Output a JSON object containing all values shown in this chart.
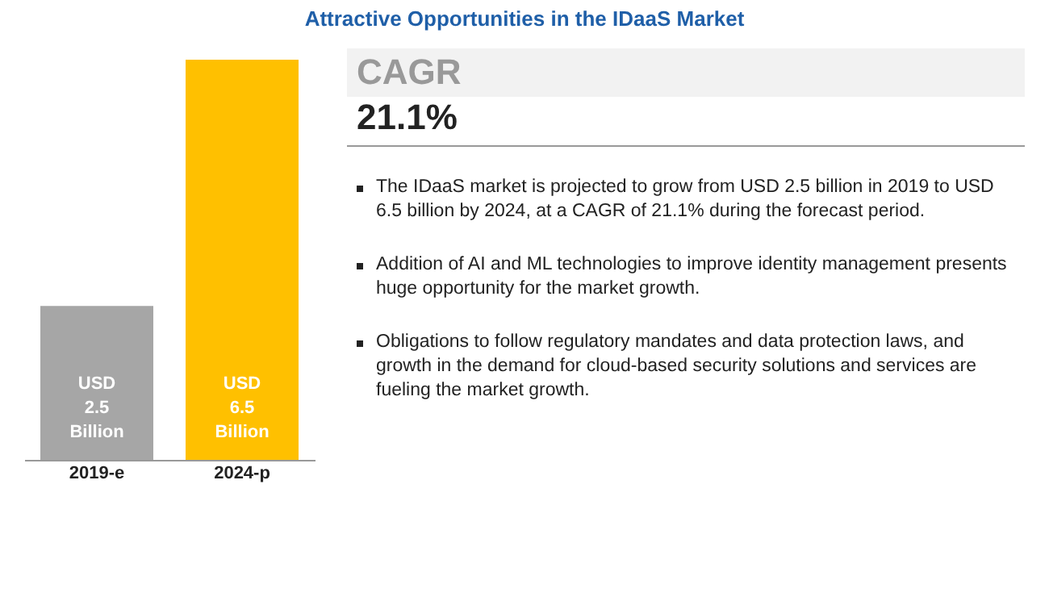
{
  "chart_data": {
    "type": "bar",
    "title": "Attractive Opportunities in the IDaaS Market",
    "categories": [
      "2019-e",
      "2024-p"
    ],
    "values": [
      2.5,
      6.5
    ],
    "colors": [
      "#a6a6a6",
      "#ffc000"
    ],
    "value_labels": [
      "USD 2.5 Billion",
      "USD 6.5 Billion"
    ],
    "annotations": [
      "CAGR",
      "21.1%",
      "The IDaaS market is projected to grow from USD 2.5 billion in 2019 to USD 6.5 billion by 2024, at a CAGR of 21.1% during the forecast period.",
      "Addition of AI and ML technologies to improve identity management presents huge opportunity for the market growth.",
      "Obligations to follow regulatory mandates and data protection laws, and growth in the demand for cloud-based security solutions and services are fueling the market growth."
    ]
  }
}
